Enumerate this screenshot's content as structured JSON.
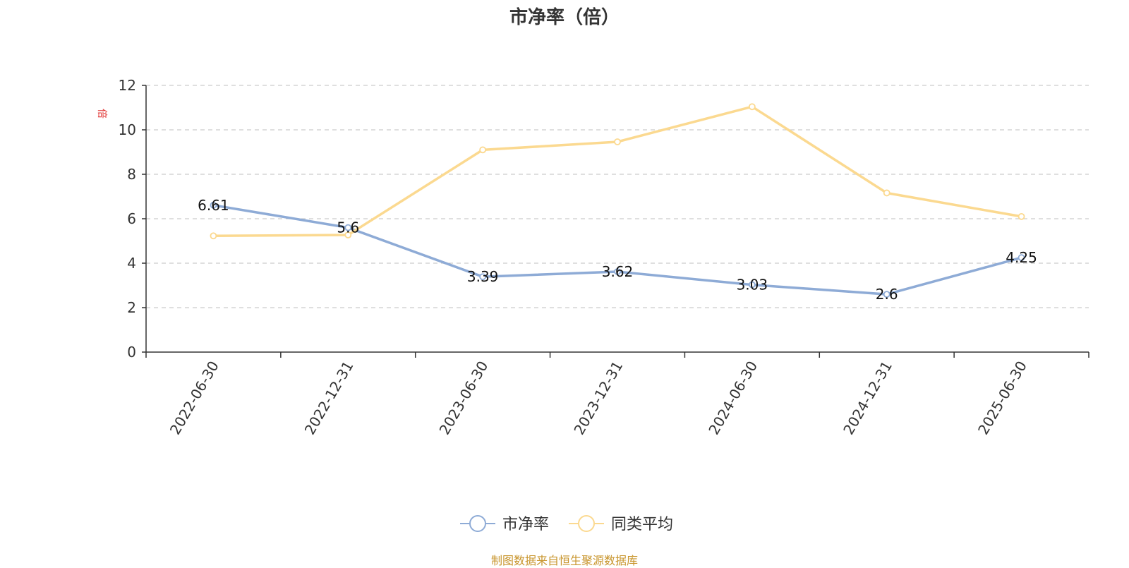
{
  "chart_data": {
    "type": "line",
    "title": "市净率（倍）",
    "ylabel": "倍",
    "xlabel": "",
    "categories": [
      "2022-06-30",
      "2022-12-31",
      "2023-06-30",
      "2023-12-31",
      "2024-06-30",
      "2024-12-31",
      "2025-06-30"
    ],
    "ylim": [
      0,
      12
    ],
    "yticks": [
      0,
      2,
      4,
      6,
      8,
      10,
      12
    ],
    "grid": true,
    "legend_position": "bottom",
    "series": [
      {
        "name": "市净率",
        "color": "#8eabd6",
        "values": [
          6.61,
          5.6,
          3.39,
          3.62,
          3.03,
          2.6,
          4.25
        ],
        "labels": [
          "6.61",
          "5.6",
          "3.39",
          "3.62",
          "3.03",
          "2.6",
          "4.25"
        ],
        "show_labels": true
      },
      {
        "name": "同类平均",
        "color": "#fbd990",
        "values": [
          5.23,
          5.27,
          9.1,
          9.46,
          11.04,
          7.16,
          6.1
        ],
        "show_labels": false
      }
    ]
  },
  "footer": {
    "source": "制图数据来自恒生聚源数据库"
  }
}
